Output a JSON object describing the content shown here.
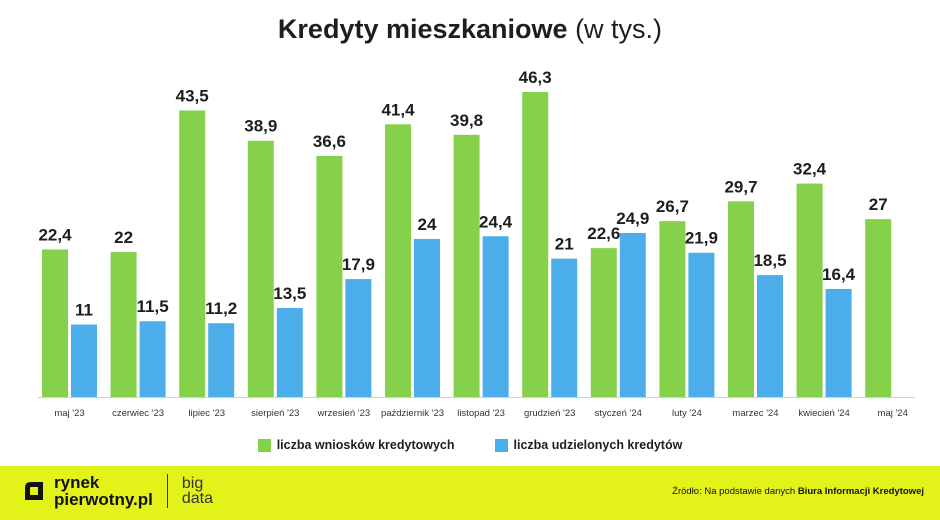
{
  "title": {
    "bold": "Kredyty mieszkaniowe",
    "light": "(w tys.)"
  },
  "colors": {
    "series1": "#86d14a",
    "series2": "#4badea"
  },
  "chart_data": {
    "type": "bar",
    "title": "Kredyty mieszkaniowe (w tys.)",
    "categories": [
      "maj '23",
      "czerwiec '23",
      "lipiec '23",
      "sierpień '23",
      "wrzesień '23",
      "październik '23",
      "listopad '23",
      "grudzień '23",
      "styczeń '24",
      "luty '24",
      "marzec '24",
      "kwiecień '24",
      "maj '24"
    ],
    "series": [
      {
        "name": "liczba wniosków kredytowych",
        "values": [
          22.4,
          22,
          43.5,
          38.9,
          36.6,
          41.4,
          39.8,
          46.3,
          22.6,
          26.7,
          29.7,
          32.4,
          27
        ],
        "labels": [
          "22,4",
          "22",
          "43,5",
          "38,9",
          "36,6",
          "41,4",
          "39,8",
          "46,3",
          "22,6",
          "26,7",
          "29,7",
          "32,4",
          "27"
        ]
      },
      {
        "name": "liczba udzielonych kredytów",
        "values": [
          11,
          11.5,
          11.2,
          13.5,
          17.9,
          24,
          24.4,
          21,
          24.9,
          21.9,
          18.5,
          16.4,
          null
        ],
        "labels": [
          "11",
          "11,5",
          "11,2",
          "13,5",
          "17,9",
          "24",
          "24,4",
          "21",
          "24,9",
          "21,9",
          "18,5",
          "16,4",
          null
        ]
      }
    ],
    "ylim": [
      0,
      48
    ],
    "grid": false,
    "legend": "bottom"
  },
  "footer": {
    "logo_line1": "rynek",
    "logo_line2": "pierwotny.pl",
    "logo_sub1": "big",
    "logo_sub2": "data",
    "source_prefix": "Źródło: Na podstawie danych",
    "source_bold": "Biura Informacji Kredytowej"
  }
}
